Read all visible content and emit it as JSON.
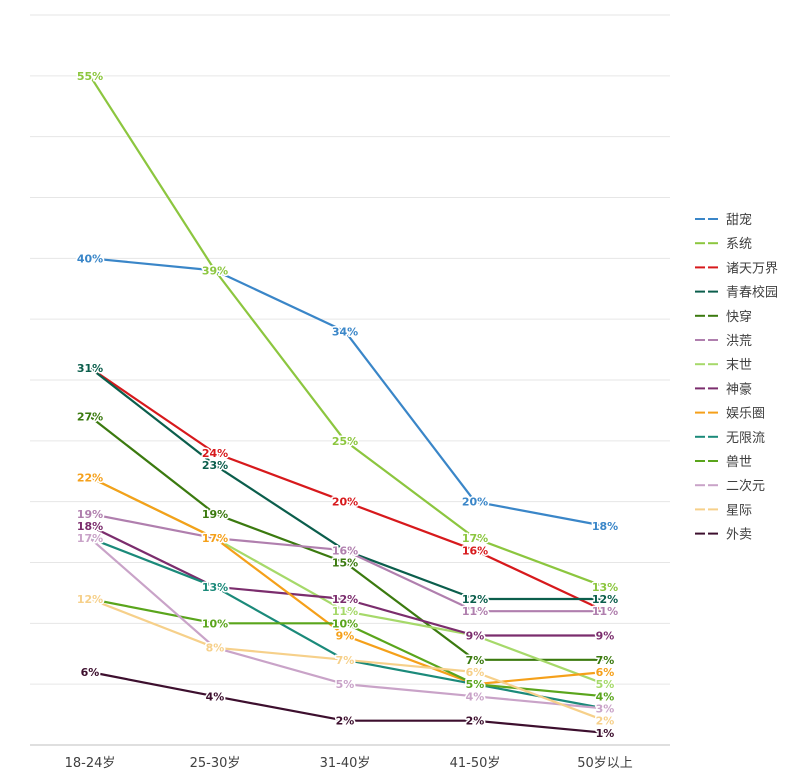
{
  "chart_data": {
    "type": "line",
    "categories": [
      "18-24岁",
      "25-30岁",
      "31-40岁",
      "41-50岁",
      "50岁以上"
    ],
    "ylim": [
      0,
      60
    ],
    "grid": true,
    "legend_position": "right",
    "series": [
      {
        "name": "甜宠",
        "color": "#3a86c8",
        "values": [
          40,
          39,
          34,
          20,
          18
        ]
      },
      {
        "name": "系统",
        "color": "#8cc63f",
        "values": [
          55,
          39,
          25,
          17,
          13
        ]
      },
      {
        "name": "诸天万界",
        "color": "#d7191c",
        "values": [
          31,
          24,
          20,
          16,
          11
        ]
      },
      {
        "name": "青春校园",
        "color": "#0b5e4c",
        "values": [
          31,
          23,
          16,
          12,
          12
        ]
      },
      {
        "name": "快穿",
        "color": "#3b7a0f",
        "values": [
          27,
          19,
          15,
          7,
          7
        ]
      },
      {
        "name": "洪荒",
        "color": "#b07fae",
        "values": [
          19,
          17,
          16,
          11,
          11
        ]
      },
      {
        "name": "末世",
        "color": "#a6d96a",
        "values": [
          22,
          17,
          11,
          9,
          5
        ]
      },
      {
        "name": "神豪",
        "color": "#7b2d6d",
        "values": [
          18,
          13,
          12,
          9,
          9
        ]
      },
      {
        "name": "娱乐圈",
        "color": "#f5a01a",
        "values": [
          22,
          17,
          9,
          5,
          6
        ]
      },
      {
        "name": "无限流",
        "color": "#1b8a7a",
        "values": [
          17,
          13,
          7,
          5,
          3
        ]
      },
      {
        "name": "兽世",
        "color": "#5aa51c",
        "values": [
          12,
          10,
          10,
          5,
          4
        ]
      },
      {
        "name": "二次元",
        "color": "#c9a3c8",
        "values": [
          17,
          8,
          5,
          4,
          3
        ]
      },
      {
        "name": "星际",
        "color": "#f6d08a",
        "values": [
          12,
          8,
          7,
          6,
          2
        ]
      },
      {
        "name": "外卖",
        "color": "#3d0f2e",
        "values": [
          6,
          4,
          2,
          2,
          1
        ]
      }
    ]
  }
}
